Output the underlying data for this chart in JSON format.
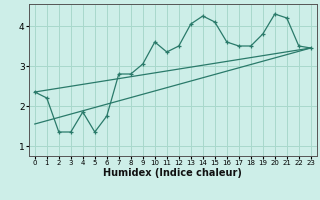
{
  "xlabel": "Humidex (Indice chaleur)",
  "bg_color": "#cdeee8",
  "grid_color": "#a8d8cc",
  "line_color": "#2a7a6a",
  "xlim": [
    -0.5,
    23.5
  ],
  "ylim": [
    0.75,
    4.55
  ],
  "xticks": [
    0,
    1,
    2,
    3,
    4,
    5,
    6,
    7,
    8,
    9,
    10,
    11,
    12,
    13,
    14,
    15,
    16,
    17,
    18,
    19,
    20,
    21,
    22,
    23
  ],
  "yticks": [
    1,
    2,
    3,
    4
  ],
  "main_x": [
    0,
    1,
    2,
    3,
    4,
    5,
    6,
    7,
    8,
    9,
    10,
    11,
    12,
    13,
    14,
    15,
    16,
    17,
    18,
    19,
    20,
    21,
    22,
    23
  ],
  "main_y": [
    2.35,
    2.2,
    1.35,
    1.35,
    1.85,
    1.35,
    1.75,
    2.8,
    2.8,
    3.05,
    3.6,
    3.35,
    3.5,
    4.05,
    4.25,
    4.1,
    3.6,
    3.5,
    3.5,
    3.8,
    4.3,
    4.2,
    3.5,
    3.45
  ],
  "line1_x": [
    0,
    23
  ],
  "line1_y": [
    2.35,
    3.45
  ],
  "line2_x": [
    0,
    23
  ],
  "line2_y": [
    1.55,
    3.45
  ]
}
